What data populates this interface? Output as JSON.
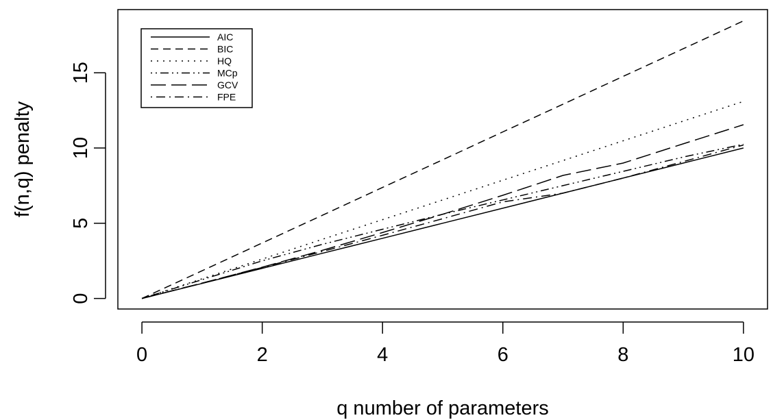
{
  "chart_data": {
    "type": "line",
    "title": "",
    "xlabel": "q   number of parameters",
    "ylabel": "f(n,q)  penalty",
    "xlim": [
      -0.4,
      10.4
    ],
    "ylim": [
      -0.7,
      19.2
    ],
    "x_ticks": [
      0,
      2,
      4,
      6,
      8,
      10
    ],
    "x_tick_labels": [
      "0",
      "2",
      "4",
      "6",
      "8",
      "10"
    ],
    "y_ticks": [
      0,
      5,
      10,
      15
    ],
    "y_tick_labels": [
      "0",
      "5",
      "10",
      "15"
    ],
    "grid": false,
    "legend_position": "top-left",
    "x": [
      0,
      1,
      2,
      3,
      4,
      5,
      6,
      7,
      8,
      9,
      10
    ],
    "series": [
      {
        "name": "AIC",
        "dash": "solid",
        "values": [
          0,
          1.0,
          2.0,
          3.0,
          4.0,
          5.0,
          6.0,
          7.0,
          8.0,
          9.0,
          10.0
        ]
      },
      {
        "name": "BIC",
        "dash": "dashed",
        "values": [
          0,
          1.84,
          3.69,
          5.53,
          7.38,
          9.22,
          11.07,
          12.91,
          14.76,
          16.6,
          18.45
        ]
      },
      {
        "name": "HQ",
        "dash": "dotted",
        "values": [
          0,
          1.31,
          2.62,
          3.93,
          5.24,
          6.55,
          7.86,
          9.17,
          10.48,
          11.79,
          13.1
        ]
      },
      {
        "name": "MCp",
        "dash": "dotdash3",
        "values": [
          0,
          1.25,
          2.5,
          3.6,
          4.6,
          5.6,
          6.55,
          7.5,
          8.45,
          9.4,
          10.25
        ]
      },
      {
        "name": "GCV",
        "dash": "longdash",
        "values": [
          0,
          1.02,
          2.08,
          3.2,
          4.38,
          5.6,
          6.86,
          8.18,
          9.0,
          10.28,
          11.55
        ]
      },
      {
        "name": "FPE",
        "dash": "dotdash",
        "values": [
          0,
          1.02,
          2.06,
          3.12,
          4.2,
          5.3,
          6.42,
          7.0,
          8.0,
          9.1,
          10.2
        ]
      }
    ]
  }
}
